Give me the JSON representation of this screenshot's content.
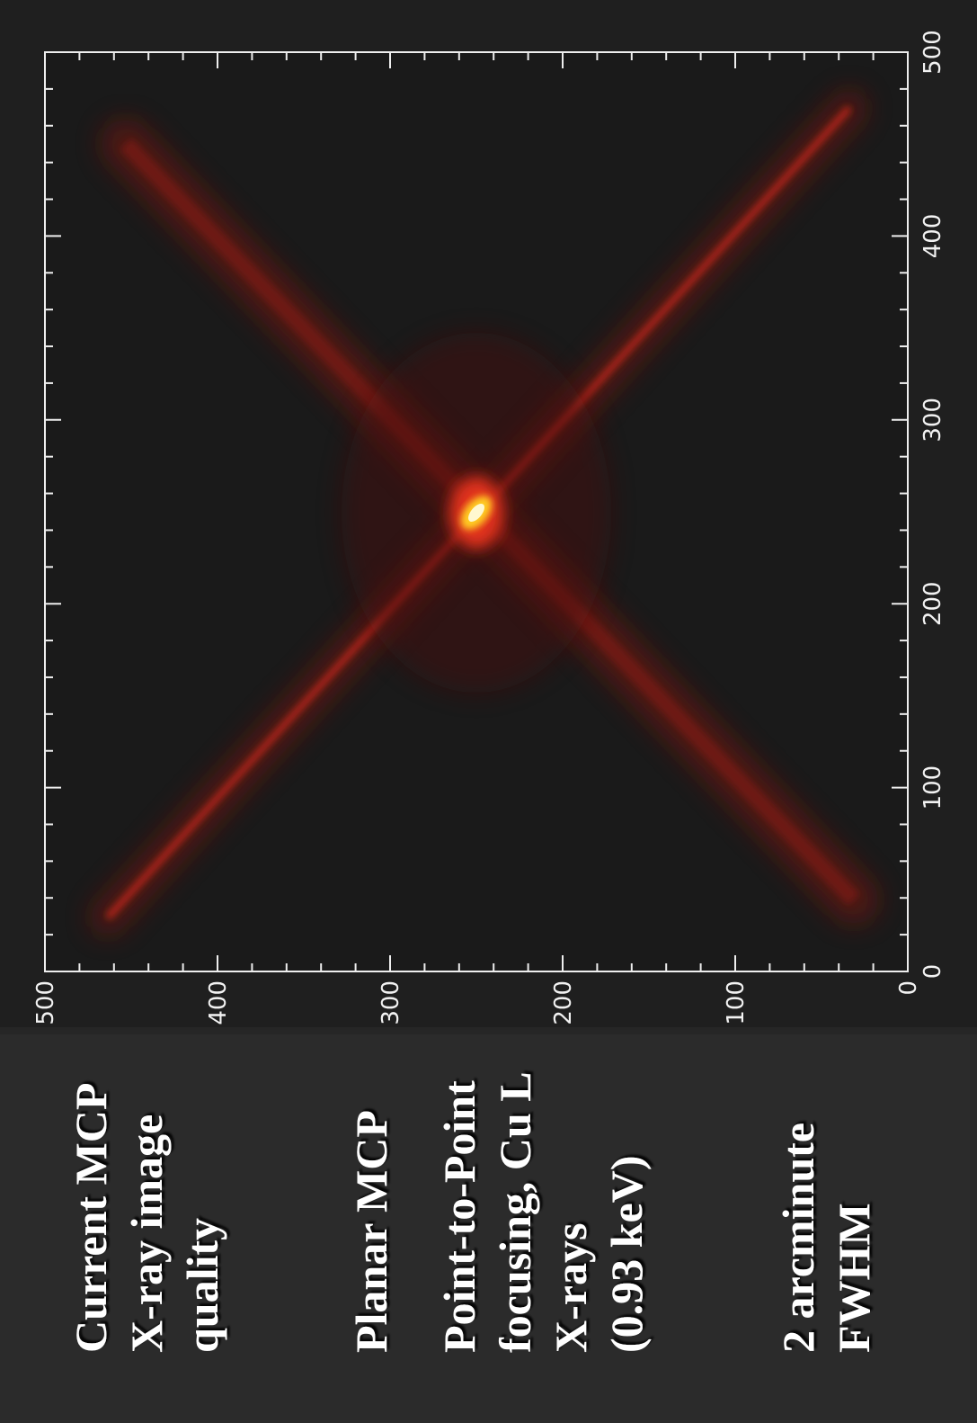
{
  "chart_data": {
    "type": "image",
    "xlim": [
      0,
      500
    ],
    "xticks": [
      0,
      100,
      200,
      300,
      400,
      500
    ],
    "ylim": [
      0,
      500
    ],
    "yticks": [
      0,
      100,
      200,
      300,
      400,
      500
    ]
  },
  "slide": {
    "blocks": [
      {
        "lines": [
          "Current MCP",
          "X-ray image",
          "quality"
        ]
      },
      {
        "lines": [
          "Planar MCP"
        ]
      },
      {
        "lines": [
          "Point-to-Point",
          "focusing, Cu L",
          "X-rays",
          "(0.93 keV)"
        ]
      },
      {
        "lines": [
          "2 arcminute",
          "FWHM"
        ]
      }
    ]
  }
}
